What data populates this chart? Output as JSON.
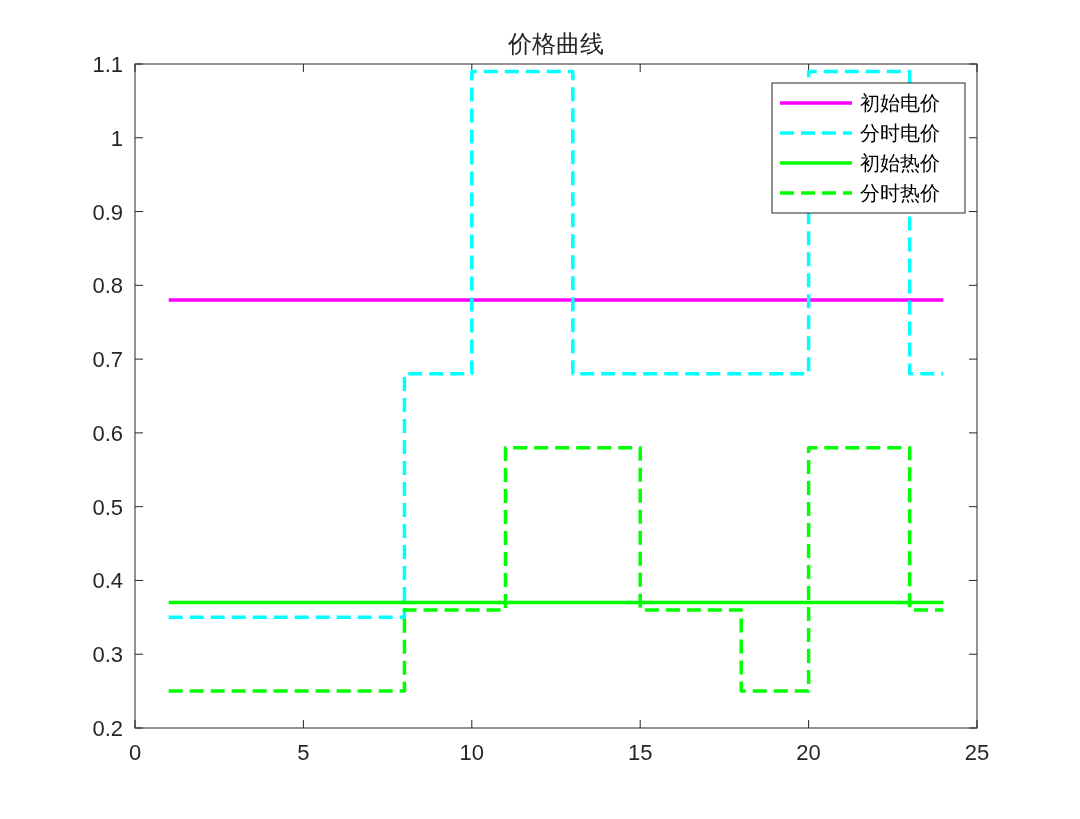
{
  "chart_data": {
    "type": "step",
    "title": "价格曲线",
    "x": [
      1,
      2,
      3,
      4,
      5,
      6,
      7,
      8,
      9,
      10,
      11,
      12,
      13,
      14,
      15,
      16,
      17,
      18,
      19,
      20,
      21,
      22,
      23,
      24
    ],
    "xlim": [
      0,
      25
    ],
    "xticks": [
      0,
      5,
      10,
      15,
      20,
      25
    ],
    "ylim": [
      0.2,
      1.1
    ],
    "yticks": [
      0.2,
      0.3,
      0.4,
      0.5,
      0.6,
      0.7,
      0.8,
      0.9,
      1,
      1.1
    ],
    "legend": "top right",
    "grid": false,
    "series": [
      {
        "name": "初始电价",
        "color": "#ff00ff",
        "line_style": "solid",
        "values": [
          0.78,
          0.78,
          0.78,
          0.78,
          0.78,
          0.78,
          0.78,
          0.78,
          0.78,
          0.78,
          0.78,
          0.78,
          0.78,
          0.78,
          0.78,
          0.78,
          0.78,
          0.78,
          0.78,
          0.78,
          0.78,
          0.78,
          0.78,
          0.78
        ]
      },
      {
        "name": "分时电价",
        "color": "#00ffff",
        "line_style": "dashed",
        "values": [
          0.35,
          0.35,
          0.35,
          0.35,
          0.35,
          0.35,
          0.35,
          0.68,
          0.68,
          1.09,
          1.09,
          1.09,
          0.68,
          0.68,
          0.68,
          0.68,
          0.68,
          0.68,
          0.68,
          1.09,
          1.09,
          1.09,
          0.68,
          0.68
        ]
      },
      {
        "name": "初始热价",
        "color": "#00ff00",
        "line_style": "solid",
        "values": [
          0.37,
          0.37,
          0.37,
          0.37,
          0.37,
          0.37,
          0.37,
          0.37,
          0.37,
          0.37,
          0.37,
          0.37,
          0.37,
          0.37,
          0.37,
          0.37,
          0.37,
          0.37,
          0.37,
          0.37,
          0.37,
          0.37,
          0.37,
          0.37
        ]
      },
      {
        "name": "分时热价",
        "color": "#00ff00",
        "line_style": "dashed",
        "values": [
          0.25,
          0.25,
          0.25,
          0.25,
          0.25,
          0.25,
          0.25,
          0.36,
          0.36,
          0.36,
          0.58,
          0.58,
          0.58,
          0.58,
          0.36,
          0.36,
          0.36,
          0.25,
          0.25,
          0.58,
          0.58,
          0.58,
          0.36,
          0.36
        ]
      }
    ]
  }
}
